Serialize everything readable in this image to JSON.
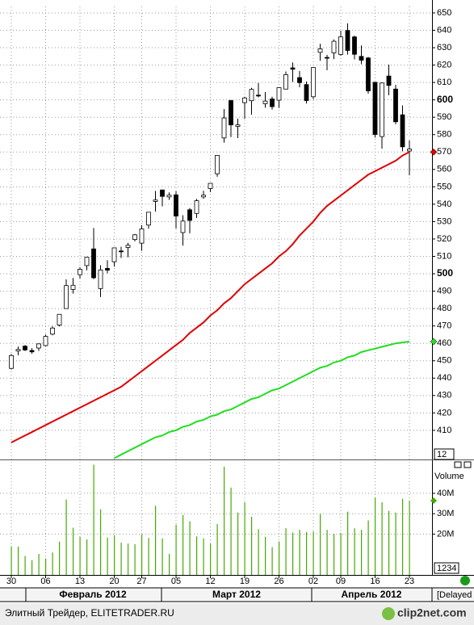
{
  "chart_data": [
    {
      "type": "candlestick",
      "open": [
        445.6,
        455.6,
        458.4,
        455.9,
        457.3,
        458.7,
        465.3,
        470.5,
        480.0,
        491.0,
        499.5,
        504.7,
        514.3,
        491.5,
        503.1,
        506.9,
        513.1,
        515.1,
        519.7,
        517.6,
        528.0,
        541.6,
        548.2,
        544.2,
        545.4,
        523.7,
        536.8,
        534.7,
        544.2,
        549.0,
        557.5,
        578.1,
        599.6,
        584.7,
        598.4,
        599.5,
        602.7,
        597.8,
        600.5,
        599.8,
        606.2,
        618.4,
        612.8,
        608.8,
        601.8,
        627.3,
        624.4,
        627.0,
        626.1,
        639.9,
        636.2,
        625.0,
        624.1,
        610.1,
        578.9,
        613.7,
        606.2,
        591.4,
        570.6
      ],
      "high": [
        453.9,
        458.2,
        459.0,
        457.2,
        460.0,
        465.0,
        469.8,
        476.8,
        496.8,
        497.6,
        503.8,
        509.6,
        526.3,
        504.9,
        507.8,
        514.9,
        515.5,
        517.8,
        522.9,
        528.0,
        535.4,
        547.6,
        548.2,
        546.8,
        547.5,
        533.7,
        537.8,
        543.0,
        547.7,
        552.0,
        568.2,
        594.7,
        600.0,
        589.2,
        601.8,
        606.9,
        609.7,
        604.5,
        601.8,
        607.2,
        616.3,
        621.5,
        616.6,
        610.6,
        618.8,
        632.2,
        625.9,
        634.7,
        639.8,
        644.0,
        636.9,
        631.3,
        624.7,
        610.3,
        610.0,
        620.3,
        608.6,
        596.8,
        576.7
      ],
      "low": [
        445.0,
        453.1,
        455.6,
        454.0,
        455.6,
        458.2,
        464.6,
        469.7,
        480.6,
        488.6,
        497.1,
        502.0,
        496.9,
        486.6,
        500.3,
        504.1,
        509.1,
        509.5,
        518.6,
        513.2,
        525.9,
        535.7,
        538.8,
        542.5,
        526.0,
        516.2,
        523.3,
        532.1,
        543.1,
        547.0,
        555.8,
        575.4,
        578.6,
        578.0,
        589.1,
        591.5,
        601.4,
        595.5,
        594.4,
        595.3,
        606.1,
        610.3,
        607.2,
        597.9,
        600.4,
        622.5,
        617.0,
        623.4,
        625.3,
        626.0,
        623.3,
        620.5,
        603.5,
        578.3,
        571.9,
        602.7,
        586.0,
        570.4,
        556.6
      ],
      "close": [
        453.0,
        456.5,
        456.2,
        455.1,
        459.7,
        464.0,
        468.8,
        476.7,
        493.2,
        493.4,
        502.6,
        509.5,
        497.7,
        502.2,
        502.1,
        514.9,
        513.0,
        516.4,
        522.4,
        525.8,
        535.4,
        542.4,
        544.5,
        545.2,
        533.2,
        530.3,
        530.7,
        542.0,
        545.2,
        552.0,
        568.1,
        589.6,
        585.6,
        585.6,
        601.1,
        606.0,
        602.5,
        599.3,
        596.1,
        607.0,
        614.5,
        617.6,
        609.9,
        599.6,
        618.6,
        629.3,
        624.3,
        633.7,
        636.2,
        628.4,
        626.2,
        622.8,
        605.2,
        580.1,
        609.7,
        608.3,
        587.4,
        573.0,
        571.7
      ],
      "up_color": "#ffffff",
      "down_color": "#000000",
      "series": [
        {
          "color": "#e00000",
          "values": [
            403,
            405,
            407,
            409,
            411,
            413,
            415,
            417,
            419,
            421,
            423,
            425,
            427,
            429,
            431,
            433,
            435,
            438,
            441,
            444,
            447,
            450,
            453,
            456,
            459,
            462,
            466,
            469,
            472,
            476,
            479,
            483,
            486,
            490,
            494,
            497,
            500,
            503,
            506,
            510,
            513,
            517,
            522,
            526,
            530,
            535,
            539,
            542,
            545,
            548,
            551,
            554,
            557,
            559,
            561,
            563,
            565,
            568,
            570
          ]
        },
        {
          "color": "#22dd22",
          "values": [
            null,
            null,
            null,
            null,
            null,
            null,
            null,
            null,
            null,
            null,
            null,
            null,
            null,
            null,
            null,
            394,
            396,
            398,
            400,
            402,
            404,
            406,
            407,
            409,
            410,
            412,
            413,
            415,
            416,
            418,
            419,
            421,
            422,
            424,
            426,
            428,
            429,
            431,
            433,
            434,
            436,
            438,
            440,
            442,
            444,
            446,
            447,
            449,
            450,
            452,
            453,
            455,
            456,
            457,
            458,
            459,
            460,
            460.5,
            461
          ]
        }
      ],
      "ylim": [
        393.7,
        653.7
      ],
      "yticks": [
        410,
        420,
        430,
        440,
        450,
        460,
        470,
        480,
        490,
        500,
        510,
        520,
        530,
        540,
        550,
        560,
        570,
        580,
        590,
        600,
        610,
        620,
        630,
        640,
        650
      ],
      "major_ytick_step": 100,
      "grid": true,
      "box_label": "12"
    },
    {
      "type": "bar",
      "categories": [
        "30",
        null,
        null,
        null,
        null,
        "06",
        null,
        null,
        null,
        null,
        "13",
        null,
        null,
        null,
        null,
        "20",
        null,
        null,
        null,
        "27",
        null,
        null,
        null,
        null,
        "05",
        null,
        null,
        null,
        null,
        "12",
        null,
        null,
        null,
        null,
        "19",
        null,
        null,
        null,
        null,
        "26",
        null,
        null,
        null,
        null,
        "02",
        null,
        null,
        null,
        "09",
        null,
        null,
        null,
        null,
        "16",
        null,
        null,
        null,
        null,
        "23"
      ],
      "values": [
        13.8,
        13.9,
        9.3,
        7.2,
        10.3,
        8.1,
        11.0,
        16.3,
        37.0,
        23.1,
        18.6,
        17.4,
        54.0,
        32.1,
        18.3,
        19.5,
        15.8,
        15.4,
        15.1,
        19.9,
        18.1,
        33.9,
        17.9,
        10.3,
        24.6,
        29.4,
        26.3,
        18.9,
        17.9,
        15.3,
        24.9,
        53.0,
        42.8,
        30.6,
        35.6,
        28.5,
        22.4,
        18.7,
        13.6,
        16.4,
        22.9,
        20.8,
        22.1,
        21.0,
        21.3,
        29.9,
        22.1,
        20.1,
        20.6,
        31.0,
        22.9,
        22.1,
        26.7,
        38.0,
        35.6,
        31.4,
        30.6,
        37.3,
        36.4
      ],
      "color": "#44aa00",
      "ylim": [
        0,
        55.4
      ],
      "yticks": [
        {
          "value": 20,
          "label": "20M"
        },
        {
          "value": 30,
          "label": "30M"
        },
        {
          "value": 40,
          "label": "40M"
        }
      ],
      "axis_label": "Volume",
      "box_label": "1234",
      "months": [
        "Февраль 2012",
        "Март 2012",
        "Апрель 2012"
      ],
      "status": "[Delayed"
    }
  ],
  "footer": {
    "source": "Элитный Трейдер, ELITETRADER.RU",
    "logo": "clip2net.com"
  }
}
